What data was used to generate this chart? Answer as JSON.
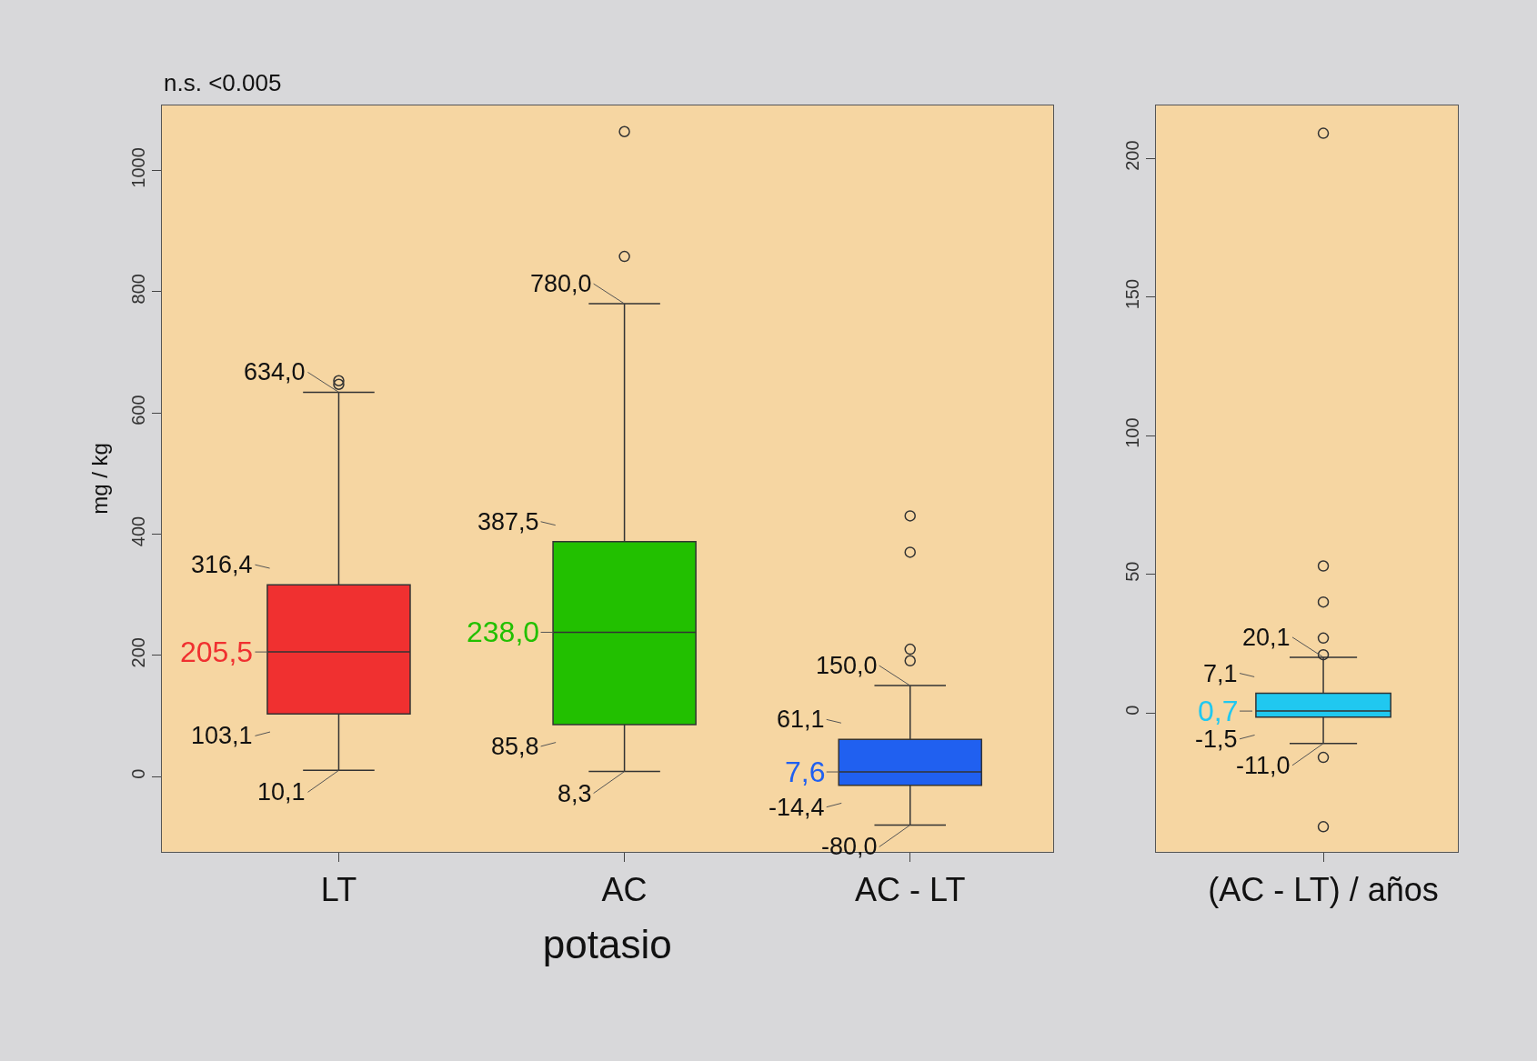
{
  "chart_data": [
    {
      "type": "box",
      "ylabel": "mg / kg",
      "xlabel": "potasio",
      "categories": [
        "LT",
        "AC",
        "AC - LT"
      ],
      "colors": [
        "#f03030",
        "#22c000",
        "#2060f0"
      ],
      "boxes": [
        {
          "low": 10.1,
          "q1": 103.1,
          "median": 205.5,
          "q3": 316.4,
          "high": 634.0,
          "outliers": [
            647,
            653
          ]
        },
        {
          "low": 8.3,
          "q1": 85.8,
          "median": 238.0,
          "q3": 387.5,
          "high": 780.0,
          "outliers": [
            858,
            1064
          ]
        },
        {
          "low": -80.0,
          "q1": -14.4,
          "median": 7.6,
          "q3": 61.1,
          "high": 150.0,
          "outliers": [
            191,
            210,
            370,
            430
          ]
        }
      ],
      "ylim": [
        -124,
        1107
      ],
      "yticks": [
        0,
        200,
        400,
        600,
        800,
        1000
      ],
      "grid": false,
      "annotations": [
        "n.s. <0.005",
        {
          "text": "634,0",
          "x": "LT",
          "y": 634.0
        },
        {
          "text": "316,4",
          "x": "LT",
          "y": 316.4
        },
        {
          "text": "205,5",
          "x": "LT",
          "y": 205.5
        },
        {
          "text": "103,1",
          "x": "LT",
          "y": 103.1
        },
        {
          "text": "10,1",
          "x": "LT",
          "y": 10.1
        },
        {
          "text": "780,0",
          "x": "AC",
          "y": 780.0
        },
        {
          "text": "387,5",
          "x": "AC",
          "y": 387.5
        },
        {
          "text": "238,0",
          "x": "AC",
          "y": 238.0
        },
        {
          "text": "85,8",
          "x": "AC",
          "y": 85.8
        },
        {
          "text": "8,3",
          "x": "AC",
          "y": 8.3
        },
        {
          "text": "150,0",
          "x": "AC - LT",
          "y": 150.0
        },
        {
          "text": "61,1",
          "x": "AC - LT",
          "y": 61.1
        },
        {
          "text": "7,6",
          "x": "AC - LT",
          "y": 7.6
        },
        {
          "text": "-14,4",
          "x": "AC - LT",
          "y": -14.4
        },
        {
          "text": "-80,0",
          "x": "AC - LT",
          "y": -80.0
        }
      ]
    },
    {
      "type": "box",
      "categories": [
        "(AC - LT) / años"
      ],
      "colors": [
        "#20c8f0"
      ],
      "boxes": [
        {
          "low": -11.0,
          "q1": -1.5,
          "median": 0.7,
          "q3": 7.1,
          "high": 20.1,
          "outliers": [
            -41,
            -16,
            21,
            27,
            40,
            53,
            209
          ]
        }
      ],
      "ylim": [
        -50,
        219
      ],
      "yticks": [
        0,
        50,
        100,
        150,
        200
      ],
      "grid": false,
      "annotations": [
        {
          "text": "20,1",
          "x": "(AC - LT) / años",
          "y": 20.1
        },
        {
          "text": "7,1",
          "x": "(AC - LT) / años",
          "y": 7.1
        },
        {
          "text": "0,7",
          "x": "(AC - LT) / años",
          "y": 0.7
        },
        {
          "text": "-1,5",
          "x": "(AC - LT) / años",
          "y": -1.5
        },
        {
          "text": "-11,0",
          "x": "(AC - LT) / años",
          "y": -11.0
        }
      ]
    }
  ]
}
